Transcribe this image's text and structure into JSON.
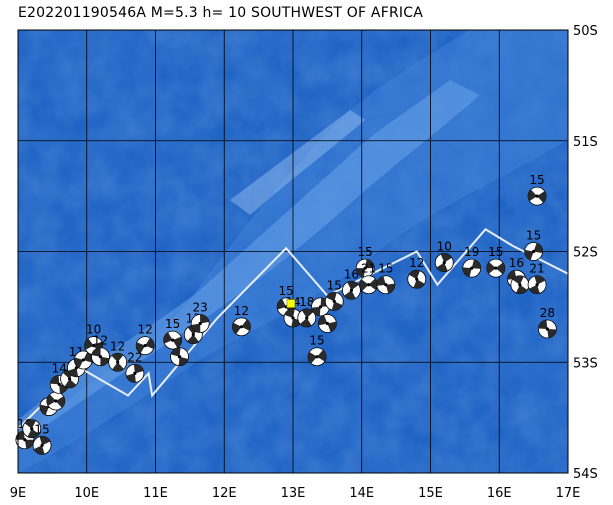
{
  "title": "E202201190546A M=5.3 h= 10 SOUTHWEST OF AFRICA",
  "map": {
    "lon_range": [
      9,
      17
    ],
    "lat_range": [
      -54,
      -50
    ],
    "x_ticks": [
      "9E",
      "10E",
      "11E",
      "12E",
      "13E",
      "14E",
      "15E",
      "16E",
      "17E"
    ],
    "y_ticks": [
      "50S",
      "51S",
      "52S",
      "53S",
      "54S"
    ],
    "colors": {
      "ocean": "#1f63c4",
      "ridge": "#4d8fe0",
      "ridge_crest": "#7fb2ec",
      "grid": "#000000",
      "plate_boundary": "#e8eef7",
      "epicenter": "#ffff00"
    },
    "plate_boundary": [
      [
        9.0,
        -53.6
      ],
      [
        9.9,
        -53.05
      ],
      [
        10.6,
        -53.3
      ],
      [
        10.9,
        -53.1
      ],
      [
        10.95,
        -53.3
      ],
      [
        11.9,
        -52.6
      ],
      [
        12.9,
        -51.97
      ],
      [
        13.5,
        -52.4
      ],
      [
        14.8,
        -52.0
      ],
      [
        15.1,
        -52.3
      ],
      [
        15.8,
        -51.8
      ],
      [
        16.2,
        -51.95
      ],
      [
        17.0,
        -52.2
      ]
    ],
    "epicenter": {
      "lon": 12.97,
      "lat": -52.47
    },
    "events": [
      {
        "lon": 9.1,
        "lat": -53.7,
        "depth": "18"
      },
      {
        "lon": 9.2,
        "lat": -53.6,
        "depth": ""
      },
      {
        "lon": 9.35,
        "lat": -53.75,
        "depth": "15"
      },
      {
        "lon": 9.45,
        "lat": -53.4,
        "depth": ""
      },
      {
        "lon": 9.55,
        "lat": -53.35,
        "depth": ""
      },
      {
        "lon": 9.6,
        "lat": -53.2,
        "depth": "14"
      },
      {
        "lon": 9.75,
        "lat": -53.15,
        "depth": ""
      },
      {
        "lon": 9.85,
        "lat": -53.05,
        "depth": "11"
      },
      {
        "lon": 9.95,
        "lat": -52.98,
        "depth": ""
      },
      {
        "lon": 10.1,
        "lat": -52.85,
        "depth": "10"
      },
      {
        "lon": 10.2,
        "lat": -52.95,
        "depth": "12"
      },
      {
        "lon": 10.45,
        "lat": -53.0,
        "depth": "12"
      },
      {
        "lon": 10.7,
        "lat": -53.1,
        "depth": "22"
      },
      {
        "lon": 10.85,
        "lat": -52.85,
        "depth": "12"
      },
      {
        "lon": 11.25,
        "lat": -52.8,
        "depth": "15"
      },
      {
        "lon": 11.35,
        "lat": -52.95,
        "depth": ""
      },
      {
        "lon": 11.55,
        "lat": -52.75,
        "depth": "13"
      },
      {
        "lon": 11.65,
        "lat": -52.65,
        "depth": "23"
      },
      {
        "lon": 12.25,
        "lat": -52.68,
        "depth": "12"
      },
      {
        "lon": 12.9,
        "lat": -52.5,
        "depth": "15"
      },
      {
        "lon": 13.0,
        "lat": -52.6,
        "depth": "14"
      },
      {
        "lon": 13.2,
        "lat": -52.6,
        "depth": "18"
      },
      {
        "lon": 13.4,
        "lat": -52.5,
        "depth": ""
      },
      {
        "lon": 13.35,
        "lat": -52.95,
        "depth": "15"
      },
      {
        "lon": 13.5,
        "lat": -52.65,
        "depth": ""
      },
      {
        "lon": 13.6,
        "lat": -52.45,
        "depth": "15"
      },
      {
        "lon": 13.85,
        "lat": -52.35,
        "depth": "16"
      },
      {
        "lon": 14.05,
        "lat": -52.15,
        "depth": "15"
      },
      {
        "lon": 14.1,
        "lat": -52.3,
        "depth": "21"
      },
      {
        "lon": 14.35,
        "lat": -52.3,
        "depth": "15"
      },
      {
        "lon": 14.8,
        "lat": -52.25,
        "depth": "12"
      },
      {
        "lon": 15.2,
        "lat": -52.1,
        "depth": "10"
      },
      {
        "lon": 15.6,
        "lat": -52.15,
        "depth": "19"
      },
      {
        "lon": 15.95,
        "lat": -52.15,
        "depth": "15"
      },
      {
        "lon": 16.25,
        "lat": -52.25,
        "depth": "16"
      },
      {
        "lon": 16.3,
        "lat": -52.3,
        "depth": ""
      },
      {
        "lon": 16.55,
        "lat": -52.3,
        "depth": "21"
      },
      {
        "lon": 16.5,
        "lat": -52.0,
        "depth": "15"
      },
      {
        "lon": 16.55,
        "lat": -51.5,
        "depth": "15"
      },
      {
        "lon": 16.7,
        "lat": -52.7,
        "depth": "28"
      }
    ]
  }
}
